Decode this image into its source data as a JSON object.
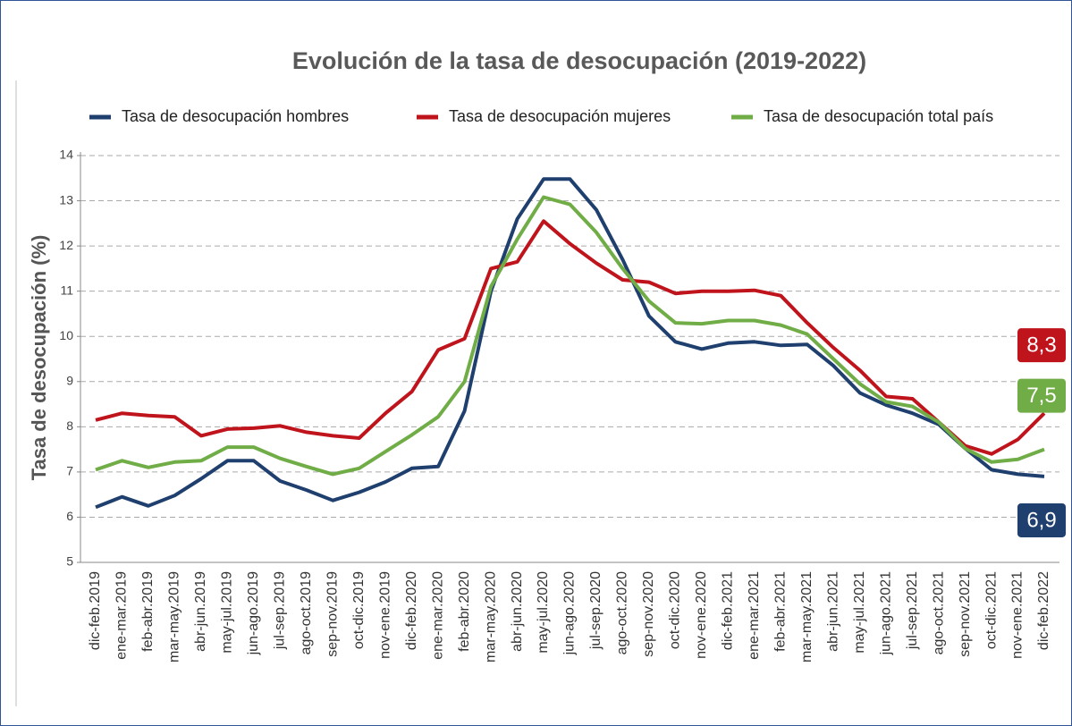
{
  "chart_data": {
    "type": "line",
    "title": "Evolución de la tasa de desocupación (2019-2022)",
    "y_label": "Tasa de desocupación (%)",
    "categories": [
      "dic-feb.2019",
      "ene-mar.2019",
      "feb-abr.2019",
      "mar-may.2019",
      "abr-jun.2019",
      "may-jul.2019",
      "jun-ago.2019",
      "jul-sep.2019",
      "ago-oct.2019",
      "sep-nov.2019",
      "oct-dic.2019",
      "nov-ene.2019",
      "dic-feb.2020",
      "ene-mar.2020",
      "feb-abr.2020",
      "mar-may.2020",
      "abr-jun.2020",
      "may-jul.2020",
      "jun-ago.2020",
      "jul-sep.2020",
      "ago-oct.2020",
      "sep-nov.2020",
      "oct-dic.2020",
      "nov-ene.2020",
      "dic-feb.2021",
      "ene-mar.2021",
      "feb-abr.2021",
      "mar-may.2021",
      "abr-jun.2021",
      "may-jul.2021",
      "jun-ago.2021",
      "jul-sep.2021",
      "ago-oct.2021",
      "sep-nov.2021",
      "oct-dic.2021",
      "nov-ene.2021",
      "dic-feb.2022"
    ],
    "series": [
      {
        "name": "Tasa de desocupación hombres",
        "color": "#1f3f6e",
        "values": [
          6.22,
          6.45,
          6.25,
          6.48,
          6.85,
          7.25,
          7.25,
          6.8,
          6.6,
          6.37,
          6.55,
          6.78,
          7.08,
          7.12,
          8.35,
          11.0,
          12.6,
          13.48,
          13.48,
          12.8,
          11.7,
          10.45,
          9.88,
          9.72,
          9.85,
          9.88,
          9.8,
          9.82,
          9.35,
          8.75,
          8.48,
          8.3,
          8.05,
          7.52,
          7.05,
          6.95,
          6.9
        ],
        "value_labels": [
          null,
          null,
          null,
          null,
          null,
          null,
          null,
          null,
          null,
          null,
          null,
          null,
          null,
          null,
          null,
          null,
          null,
          null,
          null,
          null,
          null,
          null,
          null,
          null,
          null,
          null,
          null,
          null,
          null,
          null,
          null,
          null,
          null,
          null,
          null,
          null,
          "6,9"
        ]
      },
      {
        "name": "Tasa de desocupación mujeres",
        "color": "#c0141c",
        "values": [
          8.15,
          8.3,
          8.25,
          8.22,
          7.8,
          7.95,
          7.97,
          8.02,
          7.88,
          7.8,
          7.75,
          8.3,
          8.78,
          9.7,
          9.95,
          11.5,
          11.65,
          12.55,
          12.05,
          11.62,
          11.25,
          11.2,
          10.95,
          11.0,
          11.0,
          11.02,
          10.9,
          10.3,
          9.75,
          9.25,
          8.67,
          8.62,
          8.1,
          7.58,
          7.4,
          7.72,
          8.3
        ],
        "value_labels": [
          null,
          null,
          null,
          null,
          null,
          null,
          null,
          null,
          null,
          null,
          null,
          null,
          null,
          null,
          null,
          null,
          null,
          null,
          null,
          null,
          null,
          null,
          null,
          null,
          null,
          null,
          null,
          null,
          null,
          null,
          null,
          null,
          null,
          null,
          null,
          null,
          "8,3"
        ]
      },
      {
        "name": "Tasa de desocupación total país",
        "color": "#70ad47",
        "values": [
          7.05,
          7.25,
          7.1,
          7.22,
          7.25,
          7.55,
          7.55,
          7.3,
          7.12,
          6.95,
          7.08,
          7.45,
          7.82,
          8.22,
          9.0,
          11.1,
          12.15,
          13.08,
          12.92,
          12.3,
          11.5,
          10.78,
          10.3,
          10.28,
          10.35,
          10.35,
          10.25,
          10.05,
          9.5,
          8.95,
          8.55,
          8.45,
          8.1,
          7.52,
          7.22,
          7.28,
          7.5
        ],
        "value_labels": [
          null,
          null,
          null,
          null,
          null,
          null,
          null,
          null,
          null,
          null,
          null,
          null,
          null,
          null,
          null,
          null,
          null,
          null,
          null,
          null,
          null,
          null,
          null,
          null,
          null,
          null,
          null,
          null,
          null,
          null,
          null,
          null,
          null,
          null,
          null,
          null,
          "7,5"
        ]
      }
    ],
    "ylim": [
      5,
      14
    ],
    "yticks": [
      5,
      6,
      7,
      8,
      9,
      10,
      11,
      12,
      13,
      14
    ],
    "grid": true,
    "legend": "top"
  }
}
